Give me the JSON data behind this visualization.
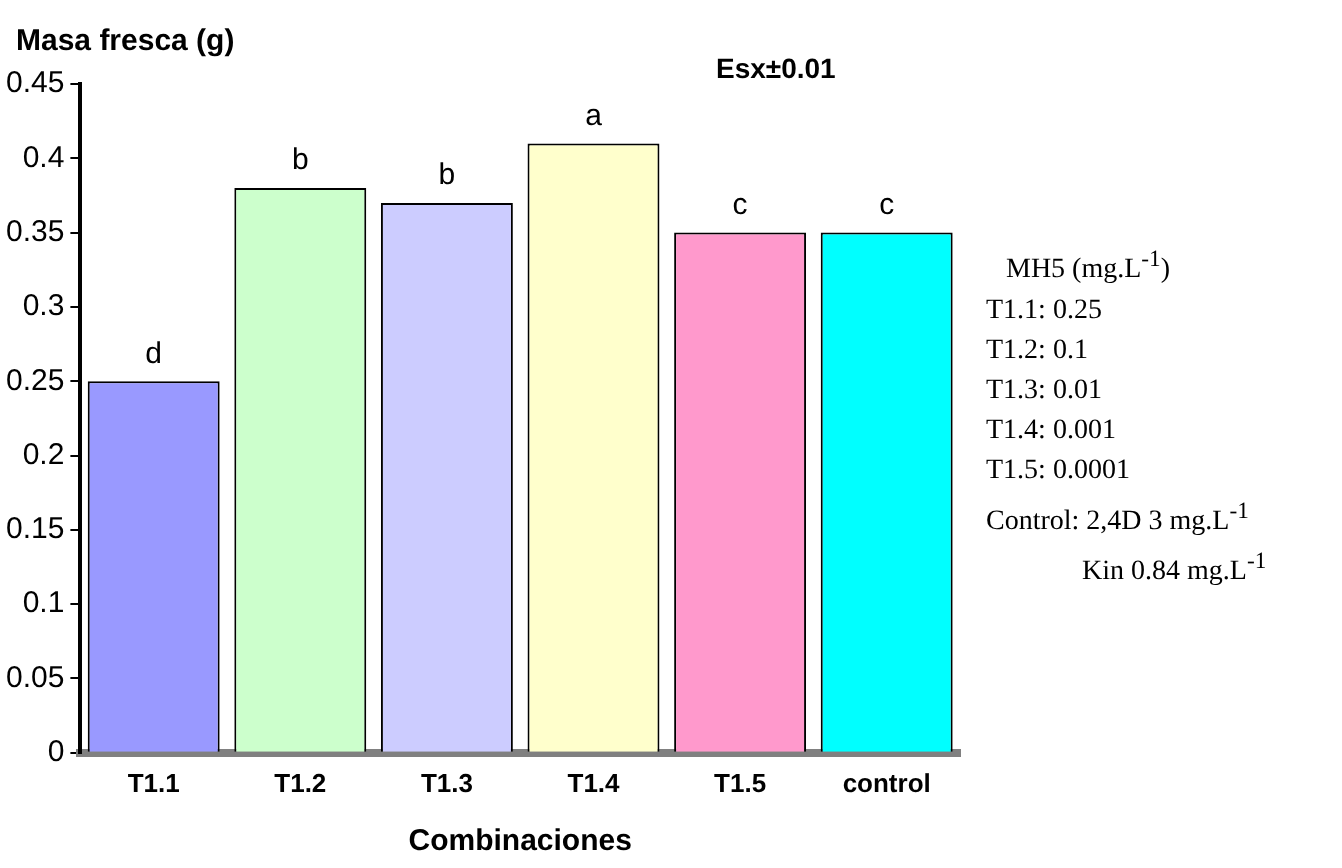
{
  "chart_data": {
    "type": "bar",
    "ylabel": "Masa fresca (g)",
    "xlabel": "Combinaciones",
    "categories": [
      "T1.1",
      "T1.2",
      "T1.3",
      "T1.4",
      "T1.5",
      "control"
    ],
    "values": [
      0.25,
      0.38,
      0.37,
      0.41,
      0.35,
      0.35
    ],
    "colors": [
      "#9999ff",
      "#ccffcc",
      "#ccccff",
      "#ffffcc",
      "#ff99cc",
      "#00ffff"
    ],
    "value_labels": [
      "d",
      "b",
      "b",
      "a",
      "c",
      "c"
    ],
    "ylim": [
      0,
      0.45
    ],
    "yticks": [
      0,
      0.05,
      0.1,
      0.15,
      0.2,
      0.25,
      0.3,
      0.35,
      0.4,
      0.45
    ],
    "annotations": [
      "Esx±0.01",
      "MH5 (mg.L$^{-1}$)",
      "T1.1: 0.25",
      "T1.2: 0.1",
      "T1.3: 0.01",
      "T1.4: 0.001",
      "T1.5: 0.0001",
      "Control: 2,4D  3 mg.L$^{-1}$",
      "Kin    0.84 mg.L$^{-1}$"
    ]
  }
}
